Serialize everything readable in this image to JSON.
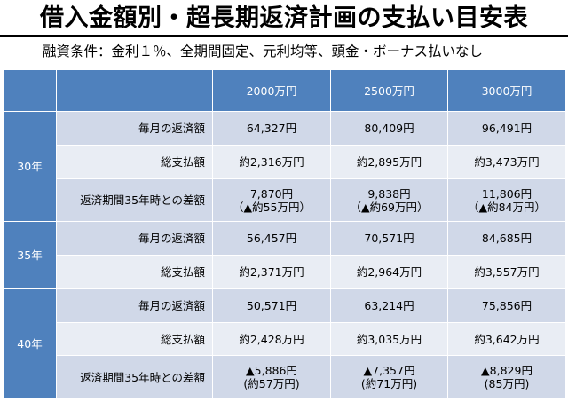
{
  "title": "借入金額別・超長期返済計画の支払い目安表",
  "subtitle": "融資条件：金利１％、全期間固定、元利均等、頭金・ボーナス払いなし",
  "table": {
    "columns": [
      "2000万円",
      "2500万円",
      "3000万円"
    ],
    "groups": [
      {
        "year": "30年",
        "rows": [
          {
            "label": "毎月の返済額",
            "values": [
              [
                "64,327円"
              ],
              [
                "80,409円"
              ],
              [
                "96,491円"
              ]
            ]
          },
          {
            "label": "総支払額",
            "values": [
              [
                "約2,316万円"
              ],
              [
                "約2,895万円"
              ],
              [
                "約3,473万円"
              ]
            ]
          },
          {
            "label": "返済期間35年時との差額",
            "values": [
              [
                "7,870円",
                "（▲約55万円）"
              ],
              [
                "9,838円",
                "（▲約69万円）"
              ],
              [
                "11,806円",
                "（▲約84万円）"
              ]
            ]
          }
        ]
      },
      {
        "year": "35年",
        "rows": [
          {
            "label": "毎月の返済額",
            "values": [
              [
                "56,457円"
              ],
              [
                "70,571円"
              ],
              [
                "84,685円"
              ]
            ]
          },
          {
            "label": "総支払額",
            "values": [
              [
                "約2,371万円"
              ],
              [
                "約2,964万円"
              ],
              [
                "約3,557万円"
              ]
            ]
          }
        ]
      },
      {
        "year": "40年",
        "rows": [
          {
            "label": "毎月の返済額",
            "values": [
              [
                "50,571円"
              ],
              [
                "63,214円"
              ],
              [
                "75,856円"
              ]
            ]
          },
          {
            "label": "総支払額",
            "values": [
              [
                "約2,428万円"
              ],
              [
                "約3,035万円"
              ],
              [
                "約3,642万円"
              ]
            ]
          },
          {
            "label": "返済期間35年時との差額",
            "values": [
              [
                "▲5,886円",
                "(約57万円)"
              ],
              [
                "▲7,357円",
                "(約71万円)"
              ],
              [
                "▲8,829円",
                "(85万円)"
              ]
            ]
          }
        ]
      }
    ]
  }
}
